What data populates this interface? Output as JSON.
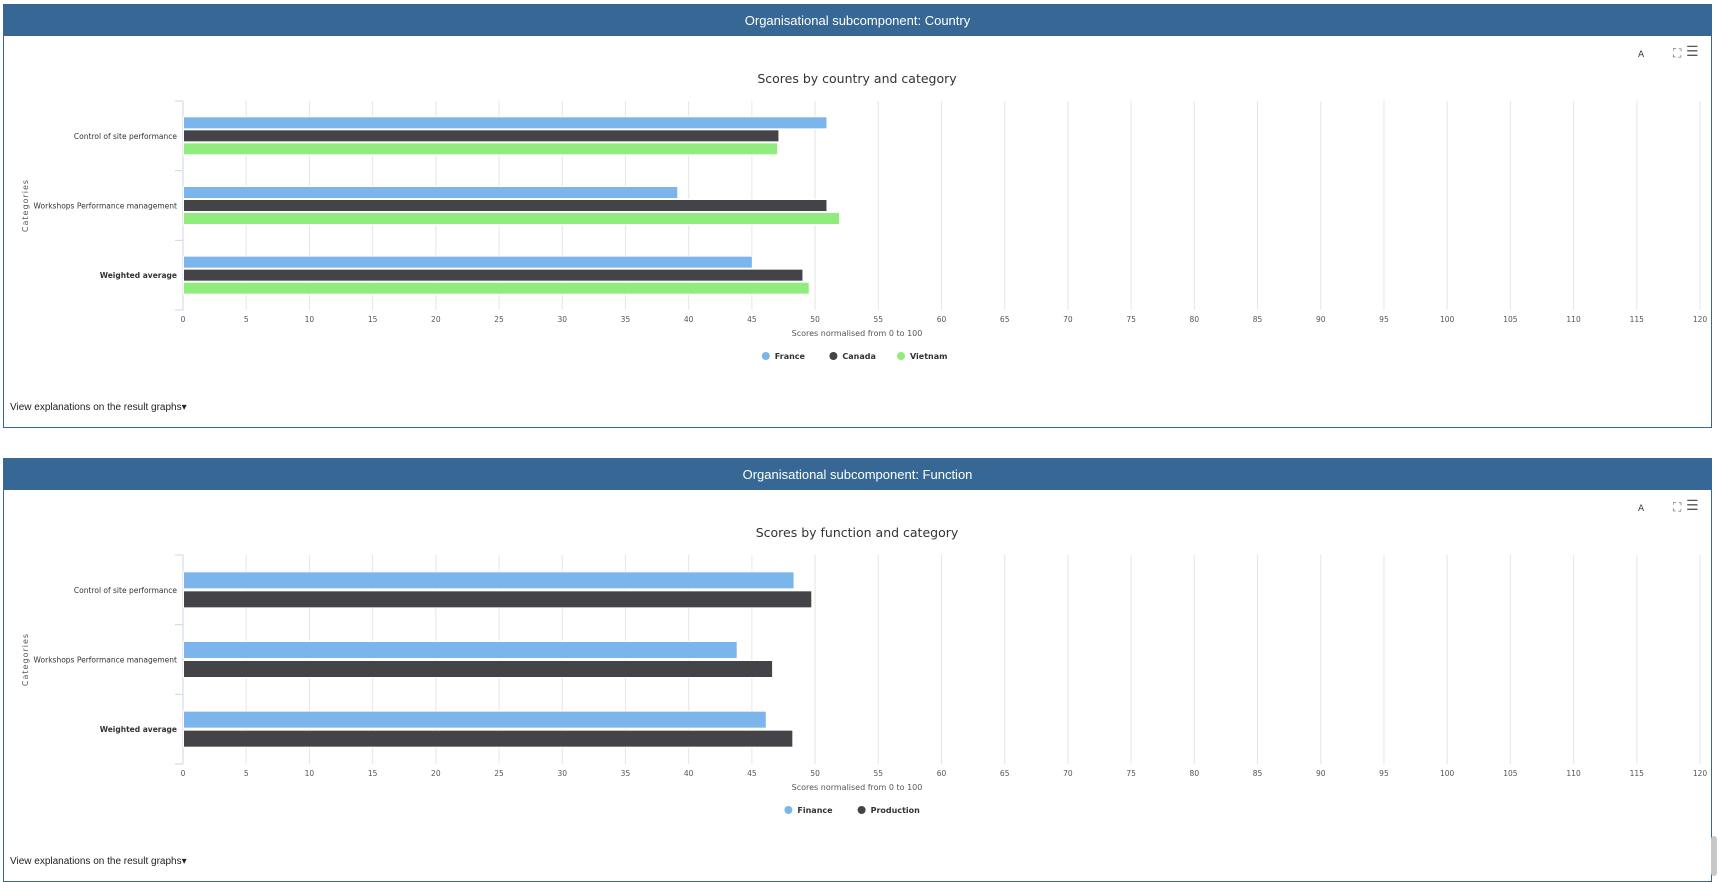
{
  "panels": [
    {
      "header": "Organisational subcomponent: Country",
      "toolbar": {
        "font_label": "A",
        "fullscreen_icon": "fullscreen-icon",
        "menu_icon": "hamburger-menu-icon"
      },
      "explain_link": "View explanations on the result graphs",
      "explain_caret": "▾"
    },
    {
      "header": "Organisational subcomponent: Function",
      "toolbar": {
        "font_label": "A",
        "fullscreen_icon": "fullscreen-icon",
        "menu_icon": "hamburger-menu-icon"
      },
      "explain_link": "View explanations on the result graphs",
      "explain_caret": "▾"
    }
  ],
  "chart_data": [
    {
      "type": "bar",
      "orientation": "horizontal",
      "title": "Scores by country and category",
      "ylabel": "Categories",
      "xlabel": "Scores normalised from 0 to 100",
      "categories": [
        "Control of site performance",
        "Workshops Performance management",
        "Weighted average"
      ],
      "bold_categories": [
        "Weighted average"
      ],
      "xlim": [
        0,
        120
      ],
      "xticks": [
        0,
        5,
        10,
        15,
        20,
        25,
        30,
        35,
        40,
        45,
        50,
        55,
        60,
        65,
        70,
        75,
        80,
        85,
        90,
        95,
        100,
        105,
        110,
        115,
        120
      ],
      "grid": true,
      "legend": "bottom-center",
      "series": [
        {
          "name": "France",
          "color": "#7cb5ec",
          "values": [
            50.9,
            39.1,
            45.0
          ]
        },
        {
          "name": "Canada",
          "color": "#434348",
          "values": [
            47.1,
            50.9,
            49.0
          ]
        },
        {
          "name": "Vietnam",
          "color": "#90ed7d",
          "values": [
            47.0,
            51.9,
            49.5
          ]
        }
      ]
    },
    {
      "type": "bar",
      "orientation": "horizontal",
      "title": "Scores by function and category",
      "ylabel": "Categories",
      "xlabel": "Scores normalised from 0 to 100",
      "categories": [
        "Control of site performance",
        "Workshops Performance management",
        "Weighted average"
      ],
      "bold_categories": [
        "Weighted average"
      ],
      "xlim": [
        0,
        120
      ],
      "xticks": [
        0,
        5,
        10,
        15,
        20,
        25,
        30,
        35,
        40,
        45,
        50,
        55,
        60,
        65,
        70,
        75,
        80,
        85,
        90,
        95,
        100,
        105,
        110,
        115,
        120
      ],
      "grid": true,
      "legend": "bottom-center",
      "series": [
        {
          "name": "Finance",
          "color": "#7cb5ec",
          "values": [
            48.3,
            43.8,
            46.1
          ]
        },
        {
          "name": "Production",
          "color": "#434348",
          "values": [
            49.7,
            46.6,
            48.2
          ]
        }
      ]
    }
  ]
}
